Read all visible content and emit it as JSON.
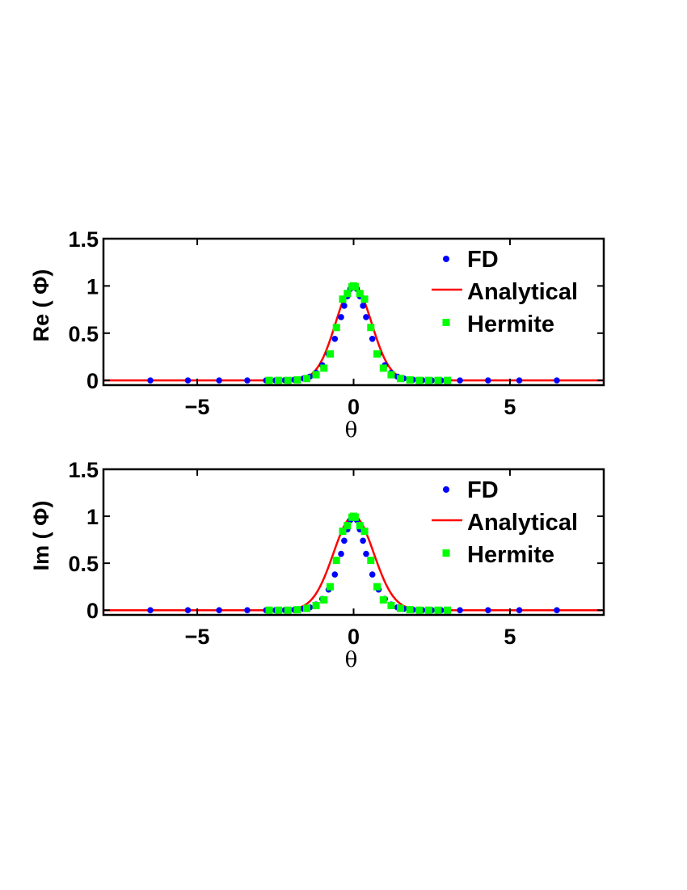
{
  "chart_data": [
    {
      "type": "line",
      "xlabel": "θ",
      "ylabel": "Re ( Φ)",
      "xlim": [
        -8,
        8
      ],
      "ylim": [
        -0.05,
        1.5
      ],
      "xticks": [
        -5,
        0,
        5
      ],
      "xtick_labels": [
        "−5",
        "0",
        "5"
      ],
      "yticks": [
        0,
        0.5,
        1,
        1.5
      ],
      "ytick_labels": [
        "0",
        "0.5",
        "1",
        "1.5"
      ],
      "grid": false,
      "legend_position": "top-right",
      "series": [
        {
          "name": "FD",
          "style": "markers-circle",
          "color": "#0000ff",
          "x": [
            -6.5,
            -5.3,
            -4.3,
            -3.4,
            -2.8,
            -2.5,
            -2.2,
            -1.9,
            -1.6,
            -1.4,
            -1.2,
            -1.0,
            -0.8,
            -0.6,
            -0.4,
            -0.3,
            -0.2,
            -0.1,
            0.0,
            0.1,
            0.2,
            0.3,
            0.4,
            0.6,
            0.8,
            1.0,
            1.2,
            1.4,
            1.6,
            1.9,
            2.2,
            2.5,
            2.8,
            3.4,
            4.3,
            5.3,
            6.5
          ],
          "y": [
            0,
            0,
            0,
            0,
            0,
            0,
            0.002,
            0.007,
            0.02,
            0.04,
            0.08,
            0.16,
            0.28,
            0.44,
            0.67,
            0.79,
            0.89,
            0.97,
            1.0,
            0.97,
            0.89,
            0.79,
            0.67,
            0.44,
            0.28,
            0.16,
            0.08,
            0.04,
            0.02,
            0.007,
            0.002,
            0,
            0,
            0,
            0,
            0,
            0
          ]
        },
        {
          "name": "Analytical",
          "style": "line",
          "color": "#ff0000",
          "function": "exp(-1.5*x^2)"
        },
        {
          "name": "Hermite",
          "style": "markers-square",
          "color": "#00ff00",
          "x": [
            -2.7,
            -2.4,
            -2.1,
            -1.8,
            -1.5,
            -1.2,
            -0.95,
            -0.75,
            -0.55,
            -0.35,
            -0.2,
            -0.05,
            0.0,
            0.05,
            0.2,
            0.35,
            0.55,
            0.75,
            0.95,
            1.2,
            1.5,
            1.8,
            2.1,
            2.4,
            2.7,
            3.0
          ],
          "y": [
            0,
            0,
            0,
            0.005,
            0.02,
            0.06,
            0.13,
            0.28,
            0.56,
            0.86,
            0.92,
            0.99,
            1.0,
            0.99,
            0.92,
            0.86,
            0.56,
            0.28,
            0.13,
            0.06,
            0.02,
            0.005,
            0,
            0,
            0,
            0
          ]
        }
      ]
    },
    {
      "type": "line",
      "xlabel": "θ",
      "ylabel": "Im ( Φ)",
      "xlim": [
        -8,
        8
      ],
      "ylim": [
        -0.05,
        1.5
      ],
      "xticks": [
        -5,
        0,
        5
      ],
      "xtick_labels": [
        "−5",
        "0",
        "5"
      ],
      "yticks": [
        0,
        0.5,
        1,
        1.5
      ],
      "ytick_labels": [
        "0",
        "0.5",
        "1",
        "1.5"
      ],
      "grid": false,
      "legend_position": "top-right",
      "series": [
        {
          "name": "FD",
          "style": "markers-circle",
          "color": "#0000ff",
          "x": [
            -6.5,
            -5.3,
            -4.3,
            -3.4,
            -2.8,
            -2.5,
            -2.2,
            -1.9,
            -1.6,
            -1.4,
            -1.2,
            -1.0,
            -0.8,
            -0.6,
            -0.4,
            -0.3,
            -0.2,
            -0.1,
            0.0,
            0.1,
            0.2,
            0.3,
            0.4,
            0.6,
            0.8,
            1.0,
            1.2,
            1.4,
            1.6,
            1.9,
            2.2,
            2.5,
            2.8,
            3.4,
            4.3,
            5.3,
            6.5
          ],
          "y": [
            0,
            0,
            0,
            0,
            0,
            0,
            0.001,
            0.004,
            0.014,
            0.03,
            0.06,
            0.12,
            0.22,
            0.38,
            0.6,
            0.74,
            0.86,
            0.96,
            1.0,
            0.96,
            0.86,
            0.74,
            0.6,
            0.38,
            0.22,
            0.12,
            0.06,
            0.03,
            0.014,
            0.004,
            0.001,
            0,
            0,
            0,
            0,
            0,
            0
          ]
        },
        {
          "name": "Analytical",
          "style": "line",
          "color": "#ff0000",
          "function": "exp(-1.2*x^2)"
        },
        {
          "name": "Hermite",
          "style": "markers-square",
          "color": "#00ff00",
          "x": [
            -2.7,
            -2.4,
            -2.1,
            -1.8,
            -1.5,
            -1.2,
            -0.95,
            -0.75,
            -0.55,
            -0.35,
            -0.2,
            -0.05,
            0.0,
            0.05,
            0.2,
            0.35,
            0.55,
            0.75,
            0.95,
            1.2,
            1.5,
            1.8,
            2.1,
            2.4,
            2.7,
            3.0
          ],
          "y": [
            0,
            0,
            0,
            0.005,
            0.02,
            0.05,
            0.11,
            0.25,
            0.53,
            0.84,
            0.9,
            0.99,
            1.0,
            0.99,
            0.9,
            0.84,
            0.53,
            0.25,
            0.11,
            0.05,
            0.02,
            0.005,
            0,
            0,
            0,
            0
          ]
        }
      ]
    }
  ]
}
